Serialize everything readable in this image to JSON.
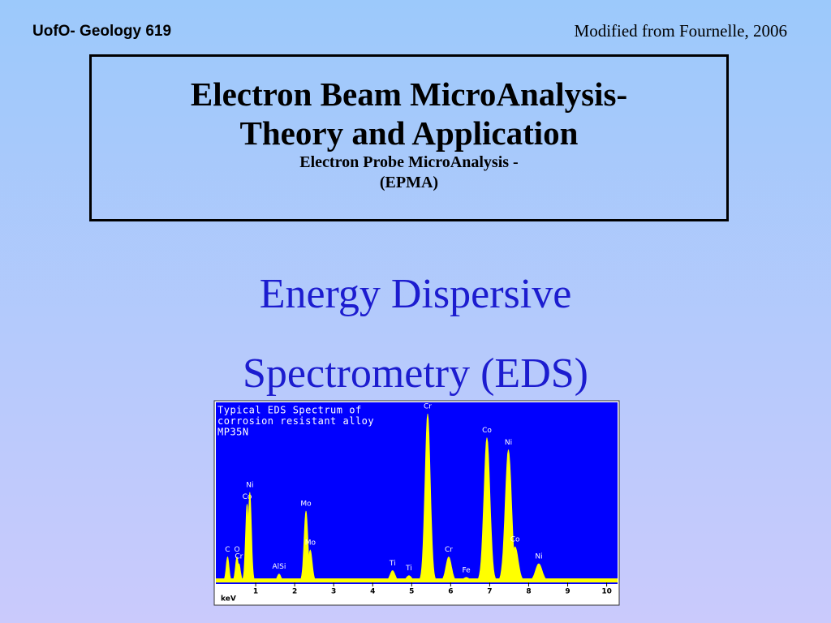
{
  "header": {
    "course": "UofO- Geology  619",
    "credit": "Modified from Fournelle, 2006"
  },
  "title_box": {
    "title_lines": [
      "Electron Beam MicroAnalysis-",
      "Theory and Application"
    ],
    "subtitle_lines": [
      "Electron Probe MicroAnalysis -",
      "(EPMA)"
    ]
  },
  "heading": {
    "lines": [
      "Energy Dispersive",
      "Spectrometry (EDS)"
    ]
  },
  "chart_data": {
    "type": "spectrum",
    "title": [
      "Typical EDS Spectrum of",
      "corrosion resistant alloy",
      "MP35N"
    ],
    "x_label": "keV",
    "xlim": [
      0,
      10.3
    ],
    "xticks": [
      1,
      2,
      3,
      4,
      5,
      6,
      7,
      8,
      9,
      10
    ],
    "ylim": [
      0,
      100
    ],
    "color": "#ffff00",
    "background": "#0000ff",
    "peaks": [
      {
        "label": "C",
        "x": 0.28,
        "y": 14
      },
      {
        "label": "O",
        "x": 0.52,
        "y": 14
      },
      {
        "label": "Cr",
        "x": 0.57,
        "y": 10
      },
      {
        "label": "Co",
        "x": 0.78,
        "y": 45
      },
      {
        "label": "Ni",
        "x": 0.85,
        "y": 52
      },
      {
        "label": "AlSi",
        "x": 1.6,
        "y": 4
      },
      {
        "label": "Mo",
        "x": 2.29,
        "y": 41
      },
      {
        "label": "Mo",
        "x": 2.4,
        "y": 18
      },
      {
        "label": "Ti",
        "x": 4.51,
        "y": 6
      },
      {
        "label": "Ti",
        "x": 4.93,
        "y": 3
      },
      {
        "label": "Cr",
        "x": 5.41,
        "y": 98
      },
      {
        "label": "Cr",
        "x": 5.95,
        "y": 14
      },
      {
        "label": "Fe",
        "x": 6.4,
        "y": 2
      },
      {
        "label": "Co",
        "x": 6.93,
        "y": 84
      },
      {
        "label": "Ni",
        "x": 7.48,
        "y": 77
      },
      {
        "label": "Co",
        "x": 7.65,
        "y": 20
      },
      {
        "label": "Ni",
        "x": 8.26,
        "y": 10
      }
    ]
  }
}
